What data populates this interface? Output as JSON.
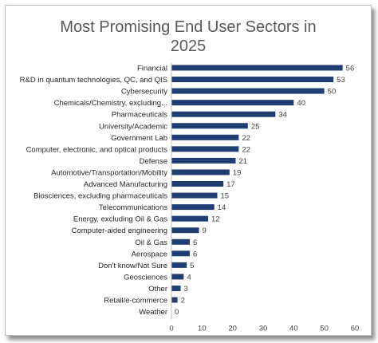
{
  "chart_data": {
    "type": "bar",
    "orientation": "horizontal",
    "title_lines": [
      "Most Promising End User Sectors in",
      "2025"
    ],
    "categories": [
      "Financial",
      "R&D in quantum technologies, QC, and QIS",
      "Cybersecurity",
      "Chemicals/Chemistry, excluding...",
      "Pharmaceuticals",
      "University/Academic",
      "Government Lab",
      "Computer, electronic, and optical products",
      "Defense",
      "Automotive/Transportation/Mobility",
      "Advanced Manufacturing",
      "Biosciences, excluding pharmaceuticals",
      "Telecommunications",
      "Energy, excluding Oil & Gas",
      "Computer-aided engineering",
      "Oil & Gas",
      "Aerospace",
      "Don't know/Not Sure",
      "Geosciences",
      "Other",
      "Retail/e-commerce",
      "Weather"
    ],
    "values": [
      56,
      53,
      50,
      40,
      34,
      25,
      22,
      22,
      21,
      19,
      17,
      15,
      14,
      12,
      9,
      6,
      6,
      5,
      4,
      3,
      2,
      0
    ],
    "xlim": [
      0,
      60
    ],
    "xticks": [
      0,
      10,
      20,
      30,
      40,
      50,
      60
    ],
    "grid": false,
    "legend": "none",
    "bar_color": "#1f3f73",
    "data_labels": true
  }
}
